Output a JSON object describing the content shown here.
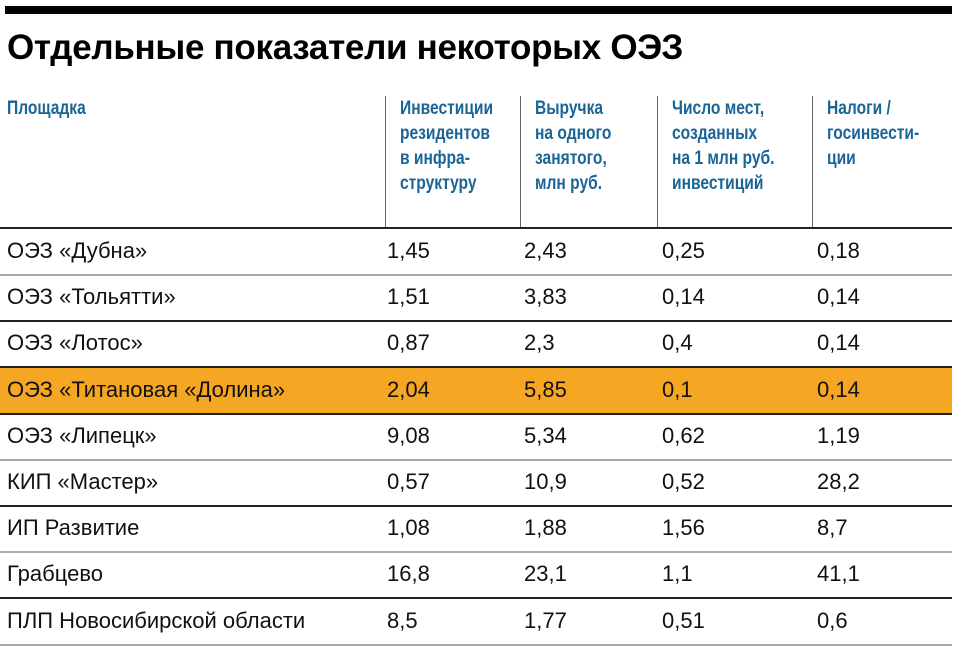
{
  "title": "Отдельные показатели некоторых ОЭЗ",
  "colors": {
    "header_text": "#1a6496",
    "highlight": "#f5a623",
    "rule_dark": "#222222",
    "rule_light": "#aaaaaa"
  },
  "columns": [
    {
      "key": "site",
      "lines": [
        "Площадка"
      ]
    },
    {
      "key": "invest",
      "lines": [
        "Инвестиции",
        "резидентов",
        "в инфра-",
        "структуру"
      ]
    },
    {
      "key": "revenue",
      "lines": [
        "Выручка",
        "на одного",
        "занятого,",
        "млн руб."
      ]
    },
    {
      "key": "jobs",
      "lines": [
        "Число мест,",
        "созданных",
        "на 1 млн руб.",
        "инвестиций"
      ]
    },
    {
      "key": "taxes",
      "lines": [
        "Налоги /",
        "госинвести-",
        "ции"
      ]
    }
  ],
  "rows": [
    {
      "site": "ОЭЗ «Дубна»",
      "invest": "1,45",
      "revenue": "2,43",
      "jobs": "0,25",
      "taxes": "0,18"
    },
    {
      "site": "ОЭЗ «Тольятти»",
      "invest": "1,51",
      "revenue": "3,83",
      "jobs": "0,14",
      "taxes": "0,14"
    },
    {
      "site": "ОЭЗ «Лотос»",
      "invest": "0,87",
      "revenue": "2,3",
      "jobs": "0,4",
      "taxes": "0,14"
    },
    {
      "site": "ОЭЗ «Титановая «Долина»",
      "invest": "2,04",
      "revenue": "5,85",
      "jobs": "0,1",
      "taxes": "0,14",
      "highlight": true
    },
    {
      "site": "ОЭЗ «Липецк»",
      "invest": "9,08",
      "revenue": "5,34",
      "jobs": "0,62",
      "taxes": "1,19"
    },
    {
      "site": "КИП «Мастер»",
      "invest": "0,57",
      "revenue": "10,9",
      "jobs": "0,52",
      "taxes": "28,2"
    },
    {
      "site": "ИП Развитие",
      "invest": "1,08",
      "revenue": "1,88",
      "jobs": "1,56",
      "taxes": "8,7"
    },
    {
      "site": "Грабцево",
      "invest": "16,8",
      "revenue": "23,1",
      "jobs": "1,1",
      "taxes": "41,1"
    },
    {
      "site": "ПЛП Новосибирской области",
      "invest": "8,5",
      "revenue": "1,77",
      "jobs": "0,51",
      "taxes": "0,6"
    }
  ],
  "chart_data": {
    "type": "table",
    "title": "Отдельные показатели некоторых ОЭЗ",
    "columns": [
      "Площадка",
      "Инвестиции резидентов в инфраструктуру",
      "Выручка на одного занятого, млн руб.",
      "Число мест, созданных на 1 млн руб. инвестиций",
      "Налоги / госинвестиции"
    ],
    "rows": [
      [
        "ОЭЗ «Дубна»",
        1.45,
        2.43,
        0.25,
        0.18
      ],
      [
        "ОЭЗ «Тольятти»",
        1.51,
        3.83,
        0.14,
        0.14
      ],
      [
        "ОЭЗ «Лотос»",
        0.87,
        2.3,
        0.4,
        0.14
      ],
      [
        "ОЭЗ «Титановая «Долина»",
        2.04,
        5.85,
        0.1,
        0.14
      ],
      [
        "ОЭЗ «Липецк»",
        9.08,
        5.34,
        0.62,
        1.19
      ],
      [
        "КИП «Мастер»",
        0.57,
        10.9,
        0.52,
        28.2
      ],
      [
        "ИП Развитие",
        1.08,
        1.88,
        1.56,
        8.7
      ],
      [
        "Грабцево",
        16.8,
        23.1,
        1.1,
        41.1
      ],
      [
        "ПЛП Новосибирской области",
        8.5,
        1.77,
        0.51,
        0.6
      ]
    ],
    "highlighted_row": "ОЭЗ «Титановая «Долина»"
  }
}
